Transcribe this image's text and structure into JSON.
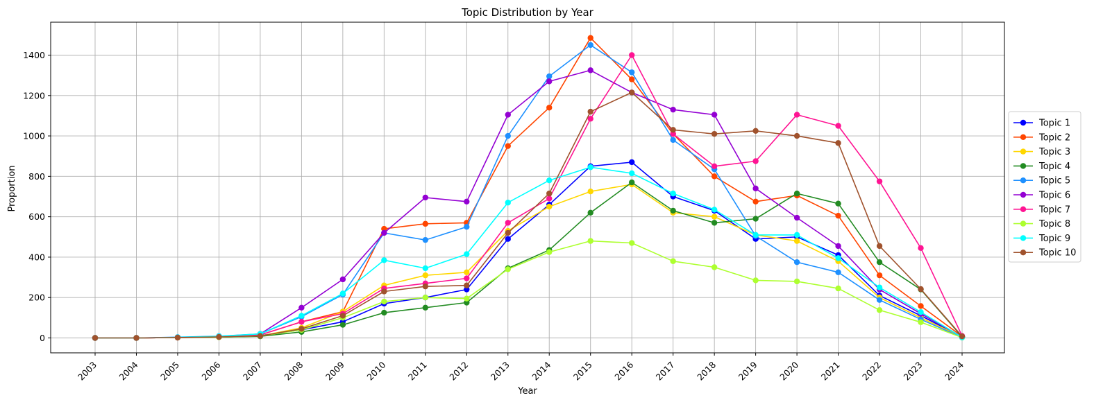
{
  "chart_data": {
    "type": "line",
    "title": "Topic Distribution by Year",
    "xlabel": "Year",
    "ylabel": "Proportion",
    "ylim": [
      -70,
      1550
    ],
    "yticks": [
      0,
      200,
      400,
      600,
      800,
      1000,
      1200,
      1400
    ],
    "grid": true,
    "legend_position": "center-right outside",
    "categories": [
      "2003",
      "2004",
      "2005",
      "2006",
      "2007",
      "2008",
      "2009",
      "2010",
      "2011",
      "2012",
      "2013",
      "2014",
      "2015",
      "2016",
      "2017",
      "2018",
      "2019",
      "2020",
      "2021",
      "2022",
      "2023",
      "2024"
    ],
    "series": [
      {
        "name": "Topic 1",
        "color": "#0000ff",
        "values": [
          0,
          0,
          2,
          5,
          12,
          40,
          80,
          170,
          200,
          240,
          490,
          660,
          850,
          870,
          700,
          630,
          490,
          500,
          410,
          210,
          110,
          5
        ]
      },
      {
        "name": "Topic 2",
        "color": "#ff4500",
        "values": [
          0,
          0,
          2,
          6,
          15,
          80,
          130,
          540,
          565,
          570,
          950,
          1140,
          1485,
          1280,
          1010,
          800,
          675,
          705,
          605,
          310,
          158,
          8
        ]
      },
      {
        "name": "Topic 3",
        "color": "#ffd700",
        "values": [
          0,
          0,
          2,
          4,
          10,
          50,
          130,
          260,
          310,
          325,
          530,
          650,
          725,
          760,
          620,
          600,
          510,
          480,
          380,
          200,
          100,
          5
        ]
      },
      {
        "name": "Topic 4",
        "color": "#228b22",
        "values": [
          0,
          0,
          2,
          4,
          8,
          30,
          65,
          125,
          150,
          175,
          345,
          435,
          620,
          770,
          630,
          570,
          590,
          715,
          665,
          375,
          240,
          5
        ]
      },
      {
        "name": "Topic 5",
        "color": "#1e90ff",
        "values": [
          0,
          0,
          4,
          9,
          20,
          105,
          215,
          520,
          485,
          550,
          1000,
          1295,
          1450,
          1315,
          980,
          835,
          505,
          375,
          325,
          188,
          92,
          2
        ]
      },
      {
        "name": "Topic 6",
        "color": "#9400d3",
        "values": [
          0,
          0,
          2,
          5,
          20,
          150,
          290,
          520,
          695,
          675,
          1105,
          1270,
          1325,
          1215,
          1130,
          1105,
          740,
          595,
          455,
          240,
          120,
          5
        ]
      },
      {
        "name": "Topic 7",
        "color": "#ff1493",
        "values": [
          0,
          0,
          2,
          5,
          15,
          80,
          120,
          245,
          270,
          295,
          570,
          690,
          1085,
          1400,
          1010,
          850,
          875,
          1105,
          1050,
          775,
          445,
          10
        ]
      },
      {
        "name": "Topic 8",
        "color": "#adff2f",
        "values": [
          0,
          0,
          2,
          4,
          10,
          40,
          100,
          180,
          200,
          195,
          340,
          425,
          480,
          470,
          380,
          350,
          285,
          280,
          245,
          138,
          78,
          2
        ]
      },
      {
        "name": "Topic 9",
        "color": "#00ffff",
        "values": [
          0,
          0,
          3,
          8,
          20,
          110,
          220,
          385,
          345,
          415,
          670,
          780,
          845,
          815,
          715,
          635,
          510,
          510,
          395,
          250,
          128,
          3
        ]
      },
      {
        "name": "Topic 10",
        "color": "#a0522d",
        "values": [
          0,
          0,
          2,
          5,
          10,
          45,
          110,
          230,
          255,
          260,
          520,
          715,
          1120,
          1215,
          1030,
          1010,
          1025,
          1000,
          965,
          455,
          242,
          8
        ]
      }
    ]
  }
}
